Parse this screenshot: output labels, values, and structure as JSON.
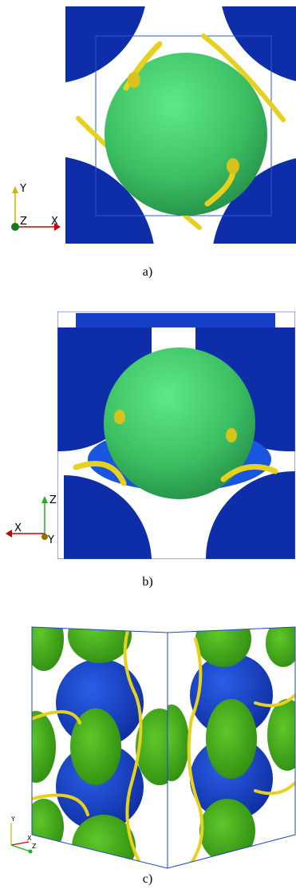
{
  "panels": [
    {
      "caption": "a)",
      "axes": [
        "Y",
        "Z",
        "X"
      ]
    },
    {
      "caption": "b)",
      "axes": [
        "Z",
        "X",
        "Y"
      ]
    },
    {
      "caption": "c)",
      "axes": [
        "Y",
        "X",
        "Z"
      ]
    }
  ]
}
